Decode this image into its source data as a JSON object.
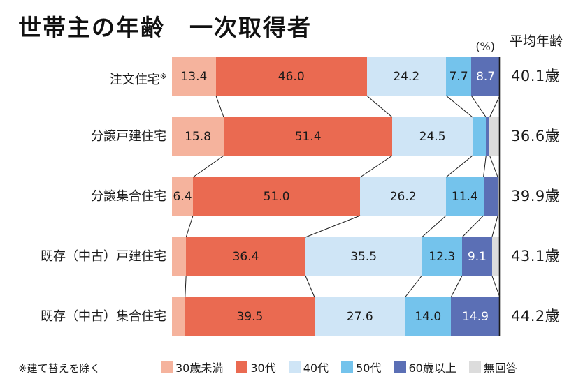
{
  "title": "世帯主の年齢　一次取得者",
  "unit_label": "(%)",
  "average_header": "平均年齢",
  "footnote": "※建て替えを除く",
  "colors": {
    "under30": "#F5B39D",
    "thirties": "#EA6A51",
    "forties": "#CFE5F6",
    "fifties": "#74C3EC",
    "over60": "#5B6FB5",
    "no_answer": "#DCDCDC",
    "axis": "#1a1a1a",
    "text": "#1a1a1a"
  },
  "chart_data": {
    "type": "bar",
    "orientation": "horizontal",
    "stacked": true,
    "unit": "%",
    "xlim": [
      0,
      100
    ],
    "grid": false,
    "legend_position": "bottom",
    "categories": [
      {
        "label": "注文住宅",
        "mark": "※"
      },
      {
        "label": "分譲戸建住宅",
        "mark": ""
      },
      {
        "label": "分譲集合住宅",
        "mark": ""
      },
      {
        "label": "既存（中古）戸建住宅",
        "mark": ""
      },
      {
        "label": "既存（中古）集合住宅",
        "mark": ""
      }
    ],
    "series": [
      {
        "name": "30歳未満",
        "color": "#F5B39D",
        "label_color": "#1a1a1a",
        "values": [
          13.4,
          15.8,
          6.4,
          4.3,
          4.0
        ],
        "labels_shown": [
          true,
          true,
          true,
          false,
          false
        ]
      },
      {
        "name": "30代",
        "color": "#EA6A51",
        "label_color": "#1a1a1a",
        "values": [
          46.0,
          51.4,
          51.0,
          36.4,
          39.5
        ],
        "labels_shown": [
          true,
          true,
          true,
          true,
          true
        ]
      },
      {
        "name": "40代",
        "color": "#CFE5F6",
        "label_color": "#1a1a1a",
        "values": [
          24.2,
          24.5,
          26.2,
          35.5,
          27.6
        ],
        "labels_shown": [
          true,
          true,
          true,
          true,
          true
        ]
      },
      {
        "name": "50代",
        "color": "#74C3EC",
        "label_color": "#1a1a1a",
        "values": [
          7.7,
          4.1,
          11.4,
          12.3,
          14.0
        ],
        "labels_shown": [
          true,
          false,
          true,
          true,
          true
        ]
      },
      {
        "name": "60歳以上",
        "color": "#5B6FB5",
        "label_color": "#ffffff",
        "values": [
          8.7,
          1.1,
          4.4,
          9.1,
          14.9
        ],
        "labels_shown": [
          true,
          false,
          false,
          true,
          true
        ]
      },
      {
        "name": "無回答",
        "color": "#DCDCDC",
        "label_color": "#1a1a1a",
        "values": [
          0,
          3.1,
          0.6,
          2.4,
          0
        ],
        "labels_shown": [
          false,
          false,
          false,
          false,
          false
        ]
      }
    ],
    "averages": [
      "40.1歳",
      "36.6歳",
      "39.9歳",
      "43.1歳",
      "44.2歳"
    ]
  }
}
